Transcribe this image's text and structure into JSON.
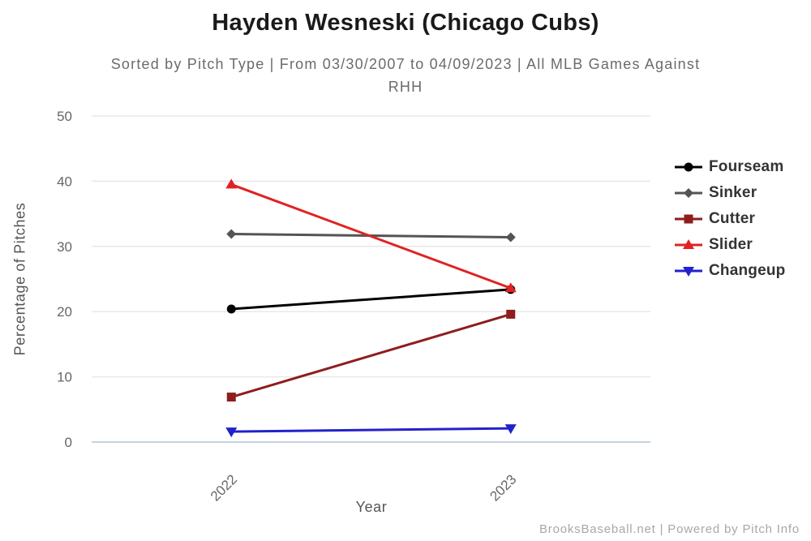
{
  "title": "Hayden Wesneski (Chicago Cubs)",
  "subtitle": "Sorted by Pitch Type | From 03/30/2007 to 04/09/2023 | All MLB Games Against RHH",
  "footer": "BrooksBaseball.net | Powered by Pitch Info",
  "chart_data": {
    "type": "line",
    "title": "Hayden Wesneski (Chicago Cubs)",
    "subtitle": "Sorted by Pitch Type | From 03/30/2007 to 04/09/2023 | All MLB Games Against RHH",
    "categories": [
      "2022",
      "2023"
    ],
    "xlabel": "Year",
    "ylabel": "Percentage of Pitches",
    "ylim": [
      0,
      50
    ],
    "yticks": [
      0,
      10,
      20,
      30,
      40,
      50
    ],
    "grid": "horizontal",
    "legend_position": "right",
    "series": [
      {
        "name": "Fourseam",
        "color": "#000000",
        "marker": "circle",
        "values": [
          20.4,
          23.4
        ]
      },
      {
        "name": "Sinker",
        "color": "#545454",
        "marker": "diamond",
        "values": [
          31.9,
          31.4
        ]
      },
      {
        "name": "Cutter",
        "color": "#8f1d1d",
        "marker": "square",
        "values": [
          6.9,
          19.6
        ]
      },
      {
        "name": "Slider",
        "color": "#e02222",
        "marker": "triangle-up",
        "values": [
          39.5,
          23.6
        ]
      },
      {
        "name": "Changeup",
        "color": "#2222cc",
        "marker": "triangle-down",
        "values": [
          1.6,
          2.1
        ]
      }
    ],
    "colors": {
      "grid": "#e8e8e8",
      "zero_axis": "#c5d5e2",
      "tick_label": "#666666",
      "legend_text": "#333333"
    }
  }
}
